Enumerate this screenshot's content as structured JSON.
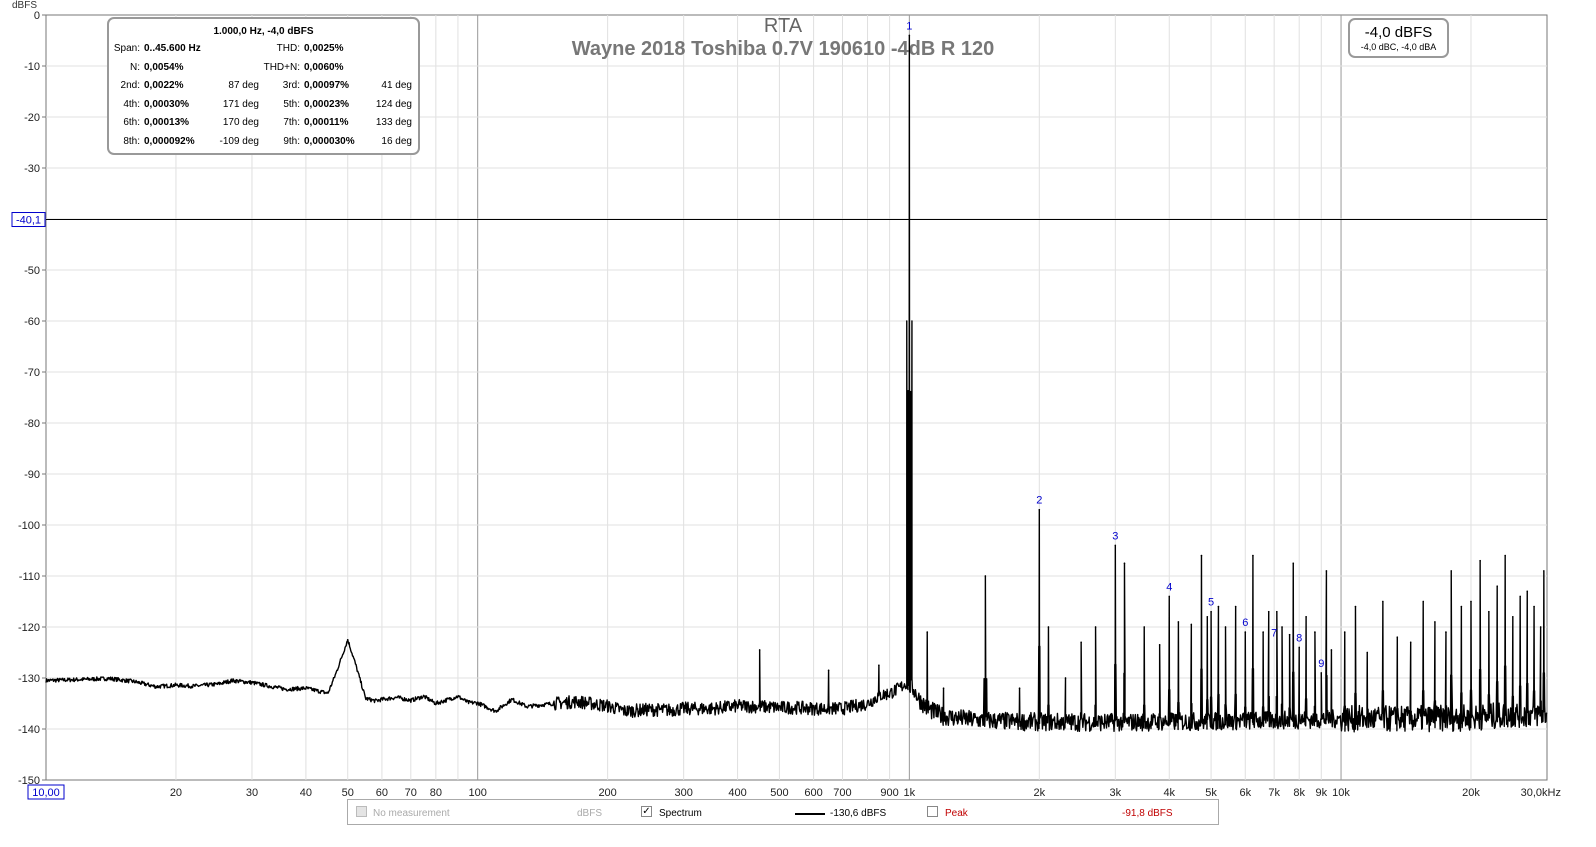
{
  "chart_data": {
    "type": "line",
    "title": "RTA",
    "subtitle": "Wayne 2018 Toshiba 0.7V 190610 -4dB R 120",
    "ylabel": "dBFS",
    "xscale": "log",
    "xlim": [
      10,
      30000
    ],
    "ylim": [
      -150,
      0
    ],
    "grid": true,
    "x_ticks": [
      {
        "value": 10,
        "label": "10,00"
      },
      {
        "value": 20,
        "label": "20"
      },
      {
        "value": 30,
        "label": "30"
      },
      {
        "value": 40,
        "label": "40"
      },
      {
        "value": 50,
        "label": "50"
      },
      {
        "value": 60,
        "label": "60"
      },
      {
        "value": 70,
        "label": "70"
      },
      {
        "value": 80,
        "label": "80"
      },
      {
        "value": 100,
        "label": "100"
      },
      {
        "value": 200,
        "label": "200"
      },
      {
        "value": 300,
        "label": "300"
      },
      {
        "value": 400,
        "label": "400"
      },
      {
        "value": 500,
        "label": "500"
      },
      {
        "value": 600,
        "label": "600"
      },
      {
        "value": 700,
        "label": "700"
      },
      {
        "value": 900,
        "label": "900"
      },
      {
        "value": 1000,
        "label": "1k"
      },
      {
        "value": 2000,
        "label": "2k"
      },
      {
        "value": 3000,
        "label": "3k"
      },
      {
        "value": 4000,
        "label": "4k"
      },
      {
        "value": 5000,
        "label": "5k"
      },
      {
        "value": 6000,
        "label": "6k"
      },
      {
        "value": 7000,
        "label": "7k"
      },
      {
        "value": 8000,
        "label": "8k"
      },
      {
        "value": 9000,
        "label": "9k"
      },
      {
        "value": 10000,
        "label": "10k"
      },
      {
        "value": 20000,
        "label": "20k"
      },
      {
        "value": 30000,
        "label": "30,0kHz"
      }
    ],
    "y_ticks": [
      {
        "value": 0,
        "label": "0"
      },
      {
        "value": -10,
        "label": "-10"
      },
      {
        "value": -20,
        "label": "-20"
      },
      {
        "value": -30,
        "label": "-30"
      },
      {
        "value": -50,
        "label": "-50"
      },
      {
        "value": -60,
        "label": "-60"
      },
      {
        "value": -70,
        "label": "-70"
      },
      {
        "value": -80,
        "label": "-80"
      },
      {
        "value": -90,
        "label": "-90"
      },
      {
        "value": -100,
        "label": "-100"
      },
      {
        "value": -110,
        "label": "-110"
      },
      {
        "value": -120,
        "label": "-120"
      },
      {
        "value": -130,
        "label": "-130"
      },
      {
        "value": -140,
        "label": "-140"
      },
      {
        "value": -150,
        "label": "-150"
      }
    ],
    "cursor": {
      "y": -40.1,
      "y_label": "-40,1",
      "x": 10,
      "x_label": "10,00"
    },
    "harmonic_markers": [
      {
        "label": "1",
        "x": 1000,
        "y": -4
      },
      {
        "label": "2",
        "x": 2000,
        "y": -97
      },
      {
        "label": "3",
        "x": 3000,
        "y": -104
      },
      {
        "label": "4",
        "x": 4000,
        "y": -114
      },
      {
        "label": "5",
        "x": 5000,
        "y": -117
      },
      {
        "label": "6",
        "x": 6000,
        "y": -121
      },
      {
        "label": "7",
        "x": 7000,
        "y": -123
      },
      {
        "label": "8",
        "x": 8000,
        "y": -124
      },
      {
        "label": "9",
        "x": 9000,
        "y": -129
      }
    ],
    "series": [
      {
        "name": "Spectrum",
        "color": "#000000",
        "baseline": [
          [
            10,
            -130.5
          ],
          [
            12,
            -130.3
          ],
          [
            14,
            -130.1
          ],
          [
            16,
            -130.7
          ],
          [
            18,
            -131.7
          ],
          [
            20,
            -131.4
          ],
          [
            22,
            -131.6
          ],
          [
            25,
            -131.2
          ],
          [
            27,
            -130.5
          ],
          [
            30,
            -130.9
          ],
          [
            33,
            -131.6
          ],
          [
            36,
            -132.2
          ],
          [
            40,
            -132.0
          ],
          [
            43,
            -132.6
          ],
          [
            45,
            -133.0
          ],
          [
            47,
            -129.0
          ],
          [
            50,
            -122.5
          ],
          [
            52,
            -127.0
          ],
          [
            55,
            -134.0
          ],
          [
            58,
            -134.5
          ],
          [
            60,
            -134.2
          ],
          [
            65,
            -133.8
          ],
          [
            70,
            -134.4
          ],
          [
            75,
            -133.6
          ],
          [
            80,
            -135.0
          ],
          [
            90,
            -133.6
          ],
          [
            95,
            -134.8
          ],
          [
            100,
            -134.9
          ],
          [
            110,
            -136.5
          ],
          [
            120,
            -134.2
          ],
          [
            130,
            -135.6
          ],
          [
            150,
            -135.0
          ],
          [
            170,
            -134.6
          ],
          [
            200,
            -135.5
          ],
          [
            220,
            -136.5
          ],
          [
            250,
            -136.2
          ],
          [
            280,
            -136.3
          ],
          [
            300,
            -136.0
          ],
          [
            350,
            -136.0
          ],
          [
            400,
            -135.5
          ],
          [
            450,
            -135.6
          ],
          [
            500,
            -135.8
          ],
          [
            550,
            -135.8
          ],
          [
            600,
            -136.0
          ],
          [
            650,
            -136.0
          ],
          [
            700,
            -136.0
          ],
          [
            750,
            -135.5
          ],
          [
            800,
            -135.0
          ],
          [
            850,
            -133.5
          ],
          [
            900,
            -133.0
          ],
          [
            950,
            -132.0
          ],
          [
            980,
            -131.0
          ],
          [
            1020,
            -132.0
          ],
          [
            1050,
            -134.0
          ],
          [
            1100,
            -136.0
          ],
          [
            1200,
            -137.5
          ],
          [
            1400,
            -138.2
          ],
          [
            1700,
            -138.5
          ],
          [
            2000,
            -138.6
          ],
          [
            3000,
            -138.7
          ],
          [
            5000,
            -138.5
          ],
          [
            8000,
            -138.2
          ],
          [
            10000,
            -138.0
          ],
          [
            15000,
            -138.0
          ],
          [
            20000,
            -137.8
          ],
          [
            25000,
            -137.2
          ],
          [
            30000,
            -137.0
          ]
        ],
        "peaks": [
          [
            50,
            -122.5
          ],
          [
            450,
            -124.5
          ],
          [
            650,
            -128.5
          ],
          [
            850,
            -127.5
          ],
          [
            1000,
            -4.0
          ],
          [
            1100,
            -121.0
          ],
          [
            1200,
            -132.0
          ],
          [
            1500,
            -110.0
          ],
          [
            1800,
            -132.0
          ],
          [
            2000,
            -97.0
          ],
          [
            2100,
            -120.0
          ],
          [
            2300,
            -130.0
          ],
          [
            2500,
            -123.0
          ],
          [
            2700,
            -120.0
          ],
          [
            3000,
            -104.0
          ],
          [
            3150,
            -107.5
          ],
          [
            3500,
            -120.0
          ],
          [
            3800,
            -123.5
          ],
          [
            4000,
            -114.0
          ],
          [
            4200,
            -119.0
          ],
          [
            4500,
            -119.5
          ],
          [
            4750,
            -106.0
          ],
          [
            4900,
            -118.0
          ],
          [
            5000,
            -117.0
          ],
          [
            5200,
            -116.0
          ],
          [
            5400,
            -120.0
          ],
          [
            5700,
            -116.0
          ],
          [
            6000,
            -121.0
          ],
          [
            6250,
            -106.0
          ],
          [
            6600,
            -121.0
          ],
          [
            6800,
            -117.0
          ],
          [
            7100,
            -117.0
          ],
          [
            7300,
            -120.0
          ],
          [
            7600,
            -121.5
          ],
          [
            7750,
            -107.5
          ],
          [
            8000,
            -124.0
          ],
          [
            8300,
            -118.0
          ],
          [
            8700,
            -121.0
          ],
          [
            9000,
            -129.0
          ],
          [
            9250,
            -109.0
          ],
          [
            9500,
            -124.5
          ],
          [
            10200,
            -121.0
          ],
          [
            10800,
            -116.0
          ],
          [
            11500,
            -125.0
          ],
          [
            12500,
            -115.0
          ],
          [
            13500,
            -122.0
          ],
          [
            14500,
            -123.0
          ],
          [
            15500,
            -115.0
          ],
          [
            16500,
            -119.0
          ],
          [
            17500,
            -121.0
          ],
          [
            18000,
            -109.0
          ],
          [
            19000,
            -116.0
          ],
          [
            20000,
            -115.0
          ],
          [
            21000,
            -107.0
          ],
          [
            22000,
            -117.0
          ],
          [
            23000,
            -112.0
          ],
          [
            24000,
            -106.0
          ],
          [
            25000,
            -118.0
          ],
          [
            26000,
            -114.0
          ],
          [
            27000,
            -113.0
          ],
          [
            28000,
            -116.0
          ],
          [
            29000,
            -120.0
          ],
          [
            29500,
            -109.0
          ]
        ]
      }
    ]
  },
  "info_box": {
    "header": "1.000,0 Hz, -4,0 dBFS",
    "rows": [
      {
        "l1": "Span:",
        "v1": "0..45.600 Hz",
        "d1": "",
        "l2": "THD:",
        "v2": "0,0025%",
        "d2": ""
      },
      {
        "l1": "N:",
        "v1": "0,0054%",
        "d1": "",
        "l2": "THD+N:",
        "v2": "0,0060%",
        "d2": ""
      },
      {
        "l1": "2nd:",
        "v1": "0,0022%",
        "d1": "87 deg",
        "l2": "3rd:",
        "v2": "0,00097%",
        "d2": "41 deg"
      },
      {
        "l1": "4th:",
        "v1": "0,00030%",
        "d1": "171 deg",
        "l2": "5th:",
        "v2": "0,00023%",
        "d2": "124 deg"
      },
      {
        "l1": "6th:",
        "v1": "0,00013%",
        "d1": "170 deg",
        "l2": "7th:",
        "v2": "0,00011%",
        "d2": "133 deg"
      },
      {
        "l1": "8th:",
        "v1": "0,000092%",
        "d1": "-109 deg",
        "l2": "9th:",
        "v2": "0,000030%",
        "d2": "16 deg"
      }
    ]
  },
  "level_box": {
    "main": "-4,0 dBFS",
    "sub": "-4,0 dBC, -4,0 dBA"
  },
  "legend": {
    "no_measurement": "No measurement",
    "no_measurement_unit": "dBFS",
    "spectrum_label": "Spectrum",
    "spectrum_value": "-130,6 dBFS",
    "peak_label": "Peak",
    "peak_value": "-91,8 dBFS",
    "peak_color": "#c00000",
    "spectrum_checked": true,
    "peak_checked": false
  }
}
